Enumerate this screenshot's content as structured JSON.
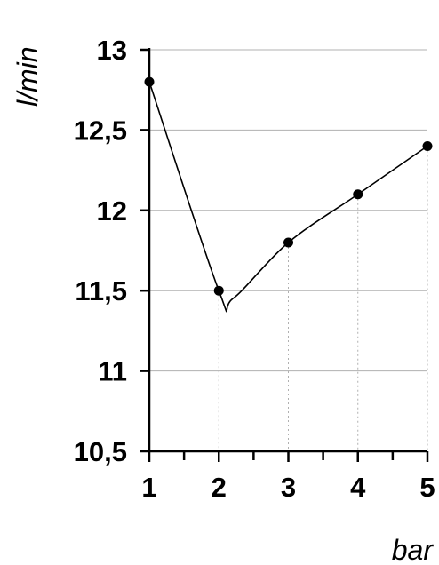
{
  "chart_data": {
    "type": "line",
    "ylabel": "l/min",
    "xlabel": "bar",
    "x": [
      1,
      2,
      3,
      4,
      5
    ],
    "series": [
      {
        "values": [
          12.8,
          11.5,
          11.8,
          12.1,
          12.4
        ]
      }
    ],
    "xlim": [
      1,
      5
    ],
    "ylim": [
      10.5,
      13
    ],
    "yticks": [
      10.5,
      11,
      11.5,
      12,
      12.5,
      13
    ],
    "ytick_labels": [
      "10,5",
      "11",
      "11,5",
      "12",
      "12,5",
      "13"
    ],
    "xtick_labels": [
      "1",
      "2",
      "3",
      "4",
      "5"
    ],
    "curve": "smoothed",
    "curve_minimum": {
      "x": 2.2,
      "y": 11.45
    },
    "grid": {
      "horizontal": "solid",
      "vertical": "dotted, below points only"
    },
    "legend": "none",
    "colors": {
      "line": "#000000",
      "points": "#000000",
      "grid": "#b0b0b0"
    }
  }
}
